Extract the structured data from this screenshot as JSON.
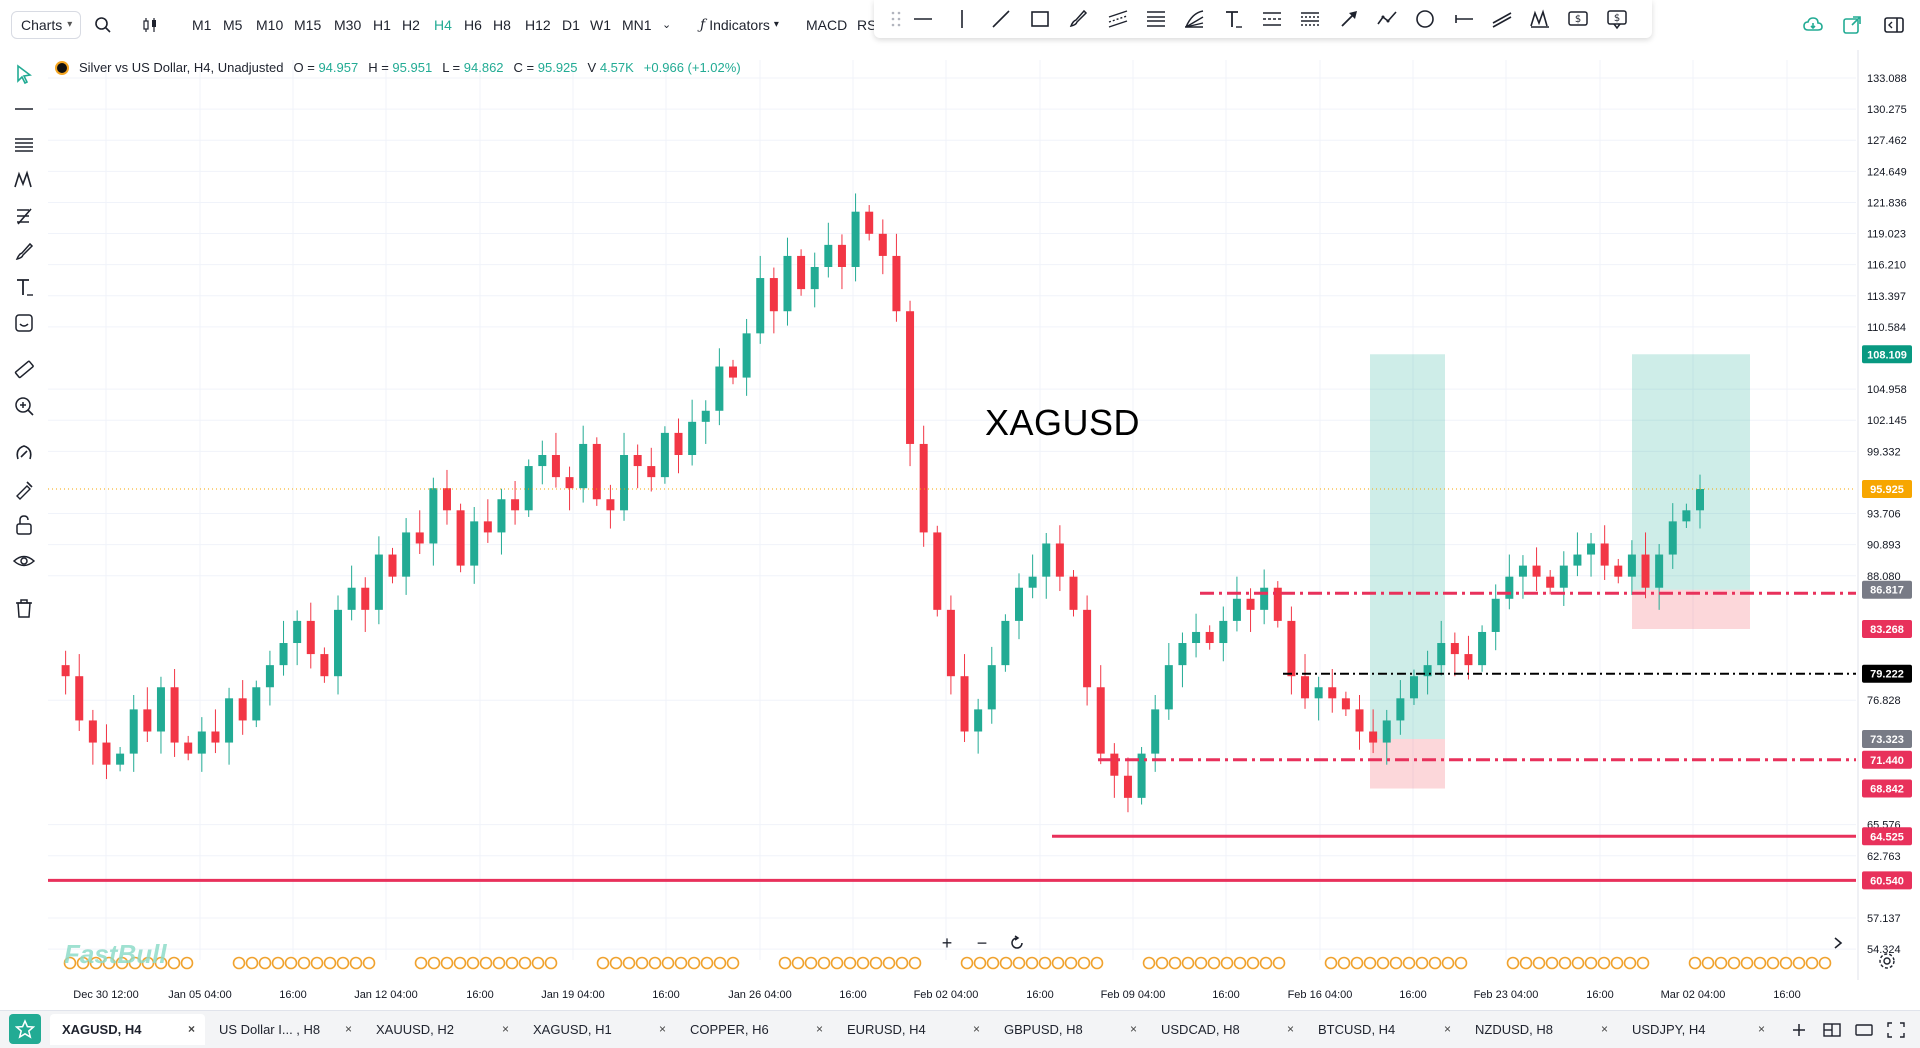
{
  "toolbar": {
    "charts_label": "Charts",
    "timeframes": [
      "M1",
      "M5",
      "M10",
      "M15",
      "M30",
      "H1",
      "H2",
      "H4",
      "H6",
      "H8",
      "H12",
      "D1",
      "W1",
      "MN1"
    ],
    "active_timeframe": "H4",
    "indicators_label": "Indicators",
    "macd_label": "MACD",
    "rs_label": "RS"
  },
  "legend": {
    "symbol_title": "Silver vs US Dollar, H4, Unadjusted",
    "o_label": "O =",
    "o_value": "94.957",
    "h_label": "H =",
    "h_value": "95.951",
    "l_label": "L =",
    "l_value": "94.862",
    "c_label": "C =",
    "c_value": "95.925",
    "v_label": "V",
    "v_value": "4.57K",
    "change": "+0.966 (+1.02%)"
  },
  "watermark": "XAGUSD",
  "logo_text": "FastBull",
  "chart_data": {
    "type": "candlestick",
    "symbol": "XAGUSD",
    "timeframe": "H4",
    "y_ticks": [
      "133.088",
      "130.275",
      "127.462",
      "124.649",
      "121.836",
      "119.023",
      "116.210",
      "113.397",
      "110.584",
      "104.958",
      "102.145",
      "99.332",
      "93.706",
      "90.893",
      "88.080",
      "76.828",
      "65.576",
      "62.763",
      "57.137",
      "54.324"
    ],
    "ylim": [
      54.324,
      135.0
    ],
    "x_labels": [
      "Dec 30 12:00",
      "Jan 05 04:00",
      "16:00",
      "Jan 12 04:00",
      "16:00",
      "Jan 19 04:00",
      "16:00",
      "Jan 26 04:00",
      "16:00",
      "Feb 02 04:00",
      "16:00",
      "Feb 09 04:00",
      "16:00",
      "Feb 16 04:00",
      "16:00",
      "Feb 23 04:00",
      "16:00",
      "Mar 02 04:00",
      "16:00"
    ],
    "price_tags": [
      {
        "value": "108.109",
        "color": "#089981"
      },
      {
        "value": "95.925",
        "color": "#f7a600"
      },
      {
        "value": "86.817",
        "color": "#787b86"
      },
      {
        "value": "83.268",
        "color": "#e8315b"
      },
      {
        "value": "79.222",
        "color": "#000000"
      },
      {
        "value": "73.323",
        "color": "#787b86"
      },
      {
        "value": "71.440",
        "color": "#e8315b"
      },
      {
        "value": "68.842",
        "color": "#e8315b"
      },
      {
        "value": "64.525",
        "color": "#e8315b"
      },
      {
        "value": "60.540",
        "color": "#e8315b"
      }
    ],
    "horizontal_lines": [
      {
        "value": 86.5,
        "style": "dash-dot",
        "color": "#e8315b"
      },
      {
        "value": 79.222,
        "style": "dash-dot",
        "color": "#000000"
      },
      {
        "value": 71.44,
        "style": "dash-dot",
        "color": "#e8315b"
      },
      {
        "value": 64.525,
        "style": "solid",
        "color": "#e8315b"
      },
      {
        "value": 60.54,
        "style": "solid",
        "color": "#e8315b"
      }
    ],
    "position_boxes": [
      {
        "entry": 73.323,
        "target": 108.109,
        "stop": 68.842
      },
      {
        "entry": 86.817,
        "target": 108.109,
        "stop": 83.268
      }
    ],
    "ohlc_path": [
      80,
      79,
      75,
      73,
      71,
      72,
      76,
      74,
      78,
      73,
      72,
      74,
      73,
      77,
      75,
      78,
      80,
      82,
      84,
      81,
      79,
      85,
      87,
      85,
      90,
      88,
      92,
      91,
      96,
      94,
      89,
      93,
      92,
      95,
      94,
      98,
      99,
      97,
      96,
      100,
      95,
      94,
      99,
      98,
      97,
      101,
      99,
      102,
      103,
      107,
      106,
      110,
      115,
      112,
      117,
      114,
      116,
      118,
      116,
      121,
      119,
      117,
      112,
      100,
      92,
      85,
      79,
      74,
      76,
      80,
      84,
      87,
      88,
      91,
      88,
      85,
      78,
      72,
      70,
      68,
      72,
      76,
      80,
      82,
      83,
      82,
      84,
      86,
      85,
      87,
      84,
      79,
      77,
      78,
      77,
      76,
      74,
      73,
      75,
      77,
      79,
      80,
      82,
      81,
      80,
      83,
      86,
      88,
      89,
      88,
      87,
      89,
      90,
      91,
      89,
      88,
      90,
      87,
      90,
      93,
      94,
      95.925
    ]
  },
  "zoom_controls": {
    "zoom_in": "+",
    "zoom_out": "−"
  },
  "tabs": [
    {
      "label": "XAGUSD, H4",
      "close": "×"
    },
    {
      "label": "US Dollar I... , H8",
      "close": "×"
    },
    {
      "label": "XAUUSD, H2",
      "close": "×"
    },
    {
      "label": "XAGUSD, H1",
      "close": "×"
    },
    {
      "label": "COPPER, H6",
      "close": "×"
    },
    {
      "label": "EURUSD, H4",
      "close": "×"
    },
    {
      "label": "GBPUSD, H8",
      "close": "×"
    },
    {
      "label": "USDCAD, H8",
      "close": "×"
    },
    {
      "label": "BTCUSD, H4",
      "close": "×"
    },
    {
      "label": "NZDUSD, H8",
      "close": "×"
    },
    {
      "label": "USDJPY, H4",
      "close": "×"
    }
  ],
  "colors": {
    "up": "#22ab94",
    "down": "#f23645",
    "accent": "#22ab94",
    "line": "#e8315b"
  },
  "icons": [
    "search-icon",
    "candle-type-icon",
    "indicators-icon",
    "cursor-icon",
    "cloud-icon",
    "expand-icon",
    "layout-icon",
    "plus-icon",
    "star-icon",
    "settings-icon",
    "fullscreen-icon"
  ]
}
